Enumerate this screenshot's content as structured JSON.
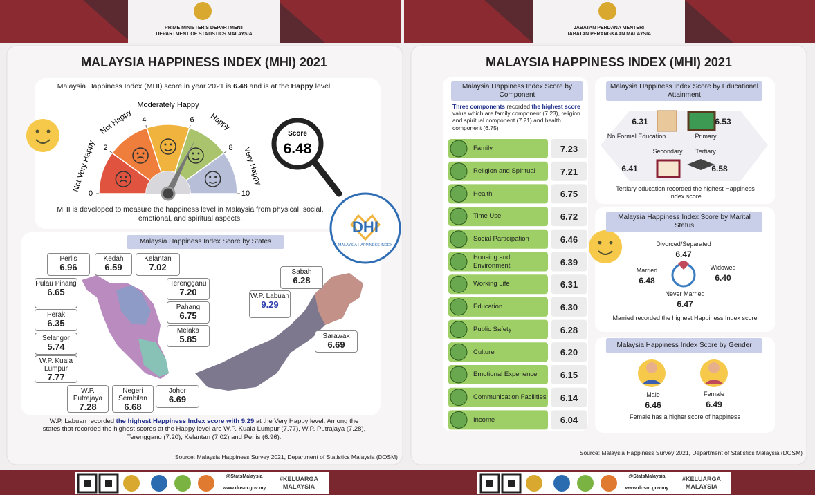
{
  "left": {
    "header": {
      "line1": "PRIME MINISTER'S DEPARTMENT",
      "line2": "DEPARTMENT OF STATISTICS MALAYSIA"
    },
    "title": "MALAYSIA HAPPINESS INDEX (MHI) 2021",
    "intro": [
      {
        "text": "Malaysia Happiness Index (MHI) score in year 2021  is ",
        "bold": false
      },
      {
        "text": "6.48",
        "bold": true
      },
      {
        "text": " and is at the ",
        "bold": false
      },
      {
        "text": "Happy",
        "bold": true
      },
      {
        "text": " level",
        "bold": false
      }
    ],
    "gauge": {
      "range": [
        0,
        10
      ],
      "ticks": [
        0,
        2,
        4,
        6,
        8,
        10
      ],
      "levels": [
        {
          "label": "Not Very Happy",
          "color": "#e0533f"
        },
        {
          "label": "Not Happy",
          "color": "#ef7d3c"
        },
        {
          "label": "Moderately Happy",
          "color": "#f0b33d"
        },
        {
          "label": "Happy",
          "color": "#a9c46c"
        },
        {
          "label": "Very Happy",
          "color": "#b7bfd8"
        }
      ],
      "score_label": "Score",
      "score": 6.48
    },
    "description": "MHI is developed to measure the happiness level in Malaysia from physical, social, emotional, and spiritual aspects.",
    "logo_text": "MALAYSIA HAPPINESS INDEX",
    "states_heading": "Malaysia Happiness Index Score by States",
    "states": [
      {
        "name": "Perlis",
        "value": "6.96"
      },
      {
        "name": "Kedah",
        "value": "6.59"
      },
      {
        "name": "Kelantan",
        "value": "7.02"
      },
      {
        "name": "Pulau Pinang",
        "value": "6.65"
      },
      {
        "name": "Perak",
        "value": "6.35"
      },
      {
        "name": "Selangor",
        "value": "5.74"
      },
      {
        "name": "W.P. Kuala Lumpur",
        "value": "7.77"
      },
      {
        "name": "W.P. Putrajaya",
        "value": "7.28"
      },
      {
        "name": "Negeri Sembilan",
        "value": "6.68"
      },
      {
        "name": "Johor",
        "value": "6.69"
      },
      {
        "name": "Terengganu",
        "value": "7.20"
      },
      {
        "name": "Pahang",
        "value": "6.75"
      },
      {
        "name": "Melaka",
        "value": "5.85"
      },
      {
        "name": "Sabah",
        "value": "6.28"
      },
      {
        "name": "W.P. Labuan",
        "value": "9.29"
      },
      {
        "name": "Sarawak",
        "value": "6.69"
      }
    ],
    "states_note": [
      {
        "text": "W.P. Labuan recorded ",
        "bold": false
      },
      {
        "text": "the highest Happiness Index score with 9.29",
        "bold": true
      },
      {
        "text": " at the Very Happy level. Among the states that recorded the highest scores at the Happy level are W.P. Kuala Lumpur (7.77), W.P. Putrajaya (7.28), Terengganu (7.20), Kelantan (7.02) and Perlis (6.96).",
        "bold": false
      }
    ],
    "source": "Source: Malaysia Happiness Survey 2021, Department of Statistics Malaysia (DOSM)"
  },
  "right": {
    "header": {
      "line1": "JABATAN PERDANA MENTERI",
      "line2": "JABATAN PERANGKAAN MALAYSIA"
    },
    "title": "MALAYSIA HAPPINESS INDEX (MHI) 2021",
    "components_heading": "Malaysia Happiness Index Score by Component",
    "components_note": [
      {
        "text": "Three components",
        "bold": true
      },
      {
        "text": " recorded ",
        "bold": false
      },
      {
        "text": "the highest score",
        "bold": true
      },
      {
        "text": " value which are family component (7.23), religion and spiritual component (7.21) and health component (6.75)",
        "bold": false
      }
    ],
    "components": [
      {
        "name": "Family",
        "value": "7.23"
      },
      {
        "name": "Religion and Spiritual",
        "value": "7.21"
      },
      {
        "name": "Health",
        "value": "6.75"
      },
      {
        "name": "Time Use",
        "value": "6.72"
      },
      {
        "name": "Social Participation",
        "value": "6.46"
      },
      {
        "name": "Housing and Environment",
        "value": "6.39"
      },
      {
        "name": "Working Life",
        "value": "6.31"
      },
      {
        "name": "Education",
        "value": "6.30"
      },
      {
        "name": "Public Safety",
        "value": "6.28"
      },
      {
        "name": "Culture",
        "value": "6.20"
      },
      {
        "name": "Emotional Experience",
        "value": "6.15"
      },
      {
        "name": "Communication Facilities",
        "value": "6.14"
      },
      {
        "name": "Income",
        "value": "6.04"
      }
    ],
    "education_heading": "Malaysia Happiness Index Score by Educational Attainment",
    "education": [
      {
        "label": "No Formal Education",
        "value": "6.31"
      },
      {
        "label": "Primary",
        "value": "6.53"
      },
      {
        "label": "Secondary",
        "value": "6.41"
      },
      {
        "label": "Tertiary",
        "value": "6.58"
      }
    ],
    "education_note": "Tertiary education recorded the highest Happiness Index score",
    "marital_heading": "Malaysia Happiness Index Score by Marital Status",
    "marital": [
      {
        "label": "Divorced/Separated",
        "value": "6.47"
      },
      {
        "label": "Married",
        "value": "6.48"
      },
      {
        "label": "Widowed",
        "value": "6.40"
      },
      {
        "label": "Never Married",
        "value": "6.47"
      }
    ],
    "marital_note": "Married recorded the highest Happiness Index score",
    "gender_heading": "Malaysia Happiness Index Score by Gender",
    "gender": [
      {
        "label": "Male",
        "value": "6.46"
      },
      {
        "label": "Female",
        "value": "6.49"
      }
    ],
    "gender_note": "Female has a higher score of happiness",
    "source": "Source: Malaysia Happiness Survey 2021, Department of Statistics Malaysia (DOSM)"
  },
  "footer": {
    "social": "@StatsMalaysia",
    "web": "www.dosm.gov.my",
    "tag": "#KELUARGA MALAYSIA"
  }
}
